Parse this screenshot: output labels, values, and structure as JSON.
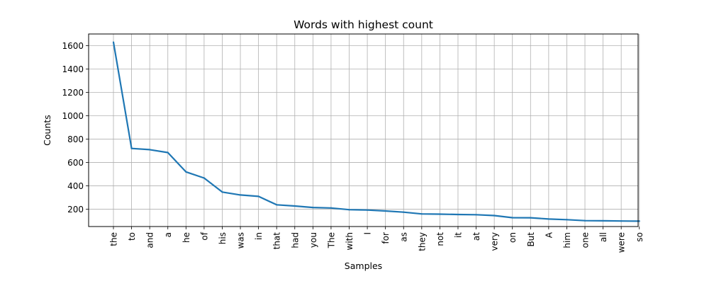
{
  "chart_data": {
    "type": "line",
    "title": "Words with highest count",
    "xlabel": "Samples",
    "ylabel": "Counts",
    "grid": true,
    "ylim": [
      52,
      1700
    ],
    "yticks": [
      200,
      400,
      600,
      800,
      1000,
      1200,
      1400,
      1600
    ],
    "categories": [
      "the",
      "to",
      "and",
      "a",
      "he",
      "of",
      "his",
      "was",
      "in",
      "that",
      "had",
      "you",
      "The",
      "with",
      "I",
      "for",
      "as",
      "they",
      "not",
      "it",
      "at",
      "very",
      "on",
      "But",
      "A",
      "him",
      "one",
      "all",
      "were",
      "so"
    ],
    "series": [
      {
        "values": [
          1630,
          720,
          710,
          685,
          520,
          467,
          347,
          322,
          310,
          238,
          228,
          215,
          211,
          196,
          193,
          185,
          175,
          160,
          158,
          155,
          153,
          146,
          128,
          127,
          116,
          111,
          102,
          101,
          99,
          98
        ],
        "color": "#1f77b4"
      }
    ]
  }
}
